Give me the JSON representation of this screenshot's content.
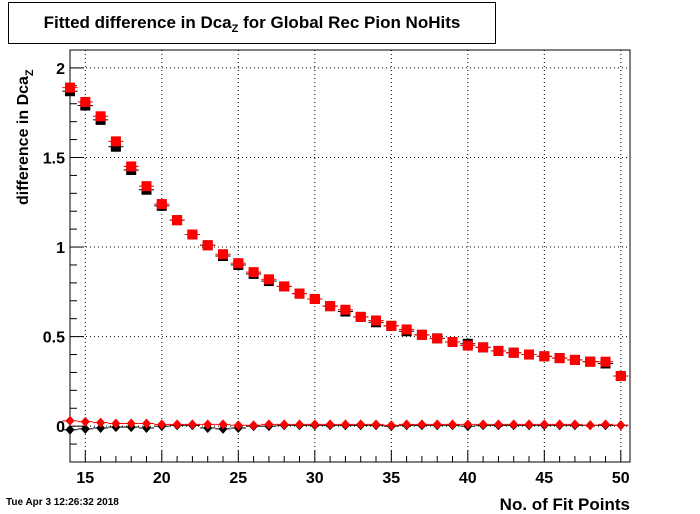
{
  "title": {
    "main": "Fitted difference in Dca",
    "sub": "Z",
    "suffix": " for Global Rec Pion NoHits"
  },
  "timestamp": "Tue Apr  3 12:26:32 2018",
  "chart_data": {
    "type": "scatter",
    "xlabel": "No. of Fit Points",
    "ylabel_main": "difference in Dca",
    "ylabel_sub": "Z",
    "xlim": [
      14,
      50.6
    ],
    "ylim": [
      -0.2,
      2.1
    ],
    "xticks": [
      15,
      20,
      25,
      30,
      35,
      40,
      45,
      50
    ],
    "yticks": [
      0,
      0.5,
      1,
      1.5,
      2
    ],
    "ytick_labels": [
      "0",
      "0.5",
      "1",
      "1.5",
      "2"
    ],
    "grid": true,
    "x": [
      14,
      15,
      16,
      17,
      18,
      19,
      20,
      21,
      22,
      23,
      24,
      25,
      26,
      27,
      28,
      29,
      30,
      31,
      32,
      33,
      34,
      35,
      36,
      37,
      38,
      39,
      40,
      41,
      42,
      43,
      44,
      45,
      46,
      47,
      48,
      49,
      50
    ],
    "series": [
      {
        "marker": "square",
        "color": "#000000",
        "values": [
          1.87,
          1.79,
          1.71,
          1.56,
          1.43,
          1.32,
          1.23,
          1.15,
          1.07,
          1.01,
          0.95,
          0.9,
          0.85,
          0.81,
          0.78,
          0.74,
          0.71,
          0.67,
          0.64,
          0.61,
          0.58,
          0.56,
          0.53,
          0.51,
          0.49,
          0.47,
          0.46,
          0.44,
          0.42,
          0.41,
          0.4,
          0.39,
          0.38,
          0.37,
          0.36,
          0.35,
          0.28
        ]
      },
      {
        "marker": "square",
        "color": "#ff0000",
        "values": [
          1.89,
          1.81,
          1.73,
          1.59,
          1.45,
          1.34,
          1.24,
          1.15,
          1.07,
          1.01,
          0.96,
          0.91,
          0.86,
          0.82,
          0.78,
          0.74,
          0.71,
          0.67,
          0.65,
          0.61,
          0.59,
          0.56,
          0.54,
          0.51,
          0.49,
          0.47,
          0.45,
          0.44,
          0.42,
          0.41,
          0.4,
          0.39,
          0.38,
          0.37,
          0.36,
          0.36,
          0.28
        ]
      },
      {
        "marker": "diamond",
        "color": "#000000",
        "values": [
          -0.02,
          -0.015,
          -0.01,
          -0.005,
          -0.005,
          -0.01,
          0.0,
          0.005,
          0.005,
          -0.01,
          -0.015,
          -0.01,
          0.0,
          0.0,
          0.005,
          0.005,
          0.005,
          0.005,
          0.005,
          0.005,
          0.005,
          0.0,
          0.005,
          0.005,
          0.005,
          0.005,
          0.0,
          0.005,
          0.005,
          0.005,
          0.005,
          0.005,
          0.005,
          0.005,
          0.005,
          0.005,
          0.005
        ]
      },
      {
        "marker": "diamond",
        "color": "#ff0000",
        "values": [
          0.03,
          0.025,
          0.02,
          0.015,
          0.015,
          0.015,
          0.01,
          0.01,
          0.01,
          0.01,
          0.01,
          0.005,
          0.005,
          0.01,
          0.01,
          0.01,
          0.01,
          0.01,
          0.01,
          0.01,
          0.01,
          0.005,
          0.01,
          0.01,
          0.01,
          0.01,
          0.01,
          0.01,
          0.01,
          0.01,
          0.01,
          0.01,
          0.01,
          0.01,
          0.005,
          0.01,
          0.005
        ]
      }
    ]
  }
}
